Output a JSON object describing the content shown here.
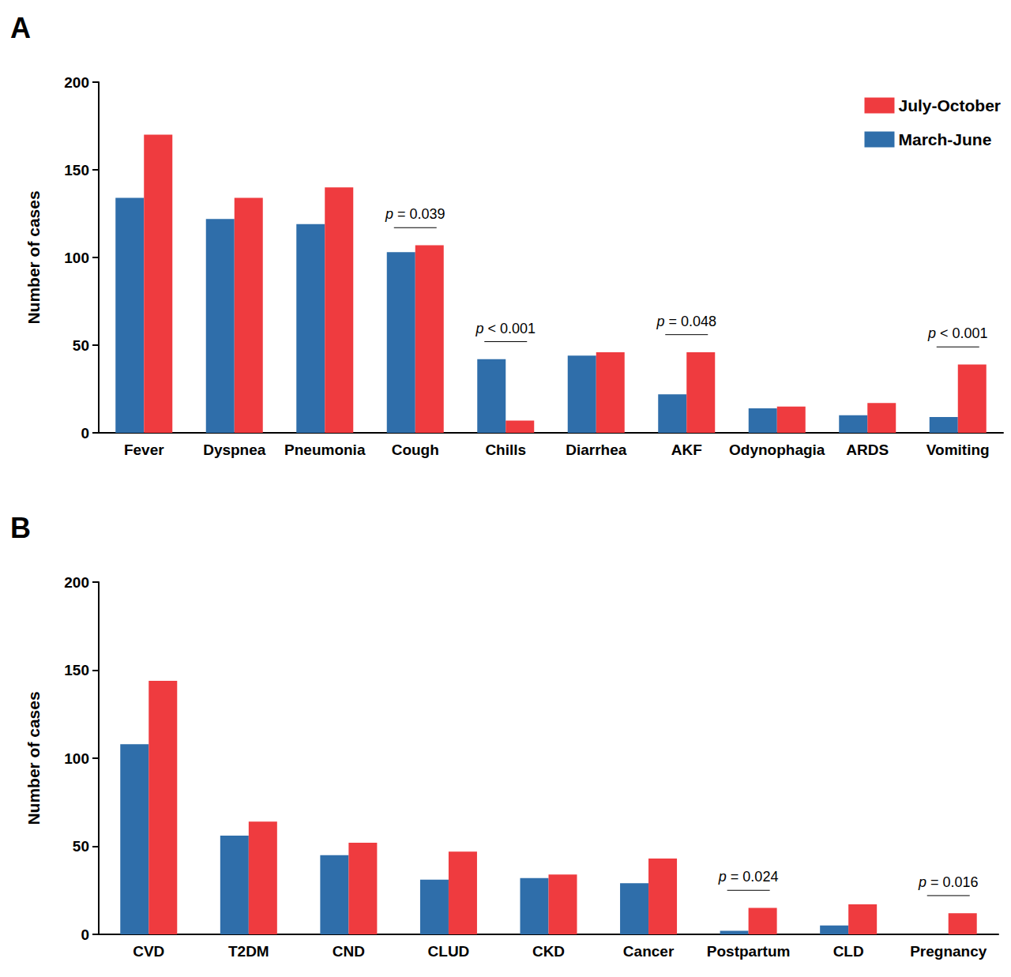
{
  "chart_data": [
    {
      "type": "bar",
      "title": "A",
      "y_label": "Number of cases",
      "categories": [
        "Fever",
        "Dyspnea",
        "Pneumonia",
        "Cough",
        "Chills",
        "Diarrhea",
        "AKF",
        "Odynophagia",
        "ARDS",
        "Vomiting"
      ],
      "series": [
        {
          "name": "March-June",
          "color": "#2f6eaa",
          "values": [
            134,
            122,
            119,
            103,
            42,
            44,
            22,
            14,
            10,
            9
          ]
        },
        {
          "name": "July-October",
          "color": "#ef3b3f",
          "values": [
            170,
            134,
            140,
            107,
            7,
            46,
            46,
            15,
            17,
            39
          ]
        }
      ],
      "ylim": [
        0,
        200
      ],
      "yticks": [
        0,
        50,
        100,
        150,
        200
      ],
      "grid": false,
      "legend": "upper right",
      "annotations": [
        {
          "category": "Cough",
          "text": "p = 0.039"
        },
        {
          "category": "Chills",
          "text": "p < 0.001"
        },
        {
          "category": "AKF",
          "text": "p = 0.048"
        },
        {
          "category": "Vomiting",
          "text": "p < 0.001"
        }
      ]
    },
    {
      "type": "bar",
      "title": "B",
      "y_label": "Number of cases",
      "categories": [
        "CVD",
        "T2DM",
        "CND",
        "CLUD",
        "CKD",
        "Cancer",
        "Postpartum",
        "CLD",
        "Pregnancy"
      ],
      "series": [
        {
          "name": "March-June",
          "color": "#2f6eaa",
          "values": [
            108,
            56,
            45,
            31,
            32,
            29,
            2,
            5,
            0
          ]
        },
        {
          "name": "July-October",
          "color": "#ef3b3f",
          "values": [
            144,
            64,
            52,
            47,
            34,
            43,
            15,
            17,
            12
          ]
        }
      ],
      "ylim": [
        0,
        200
      ],
      "yticks": [
        0,
        50,
        100,
        150,
        200
      ],
      "grid": false,
      "annotations": [
        {
          "category": "Postpartum",
          "text": "p = 0.024"
        },
        {
          "category": "Pregnancy",
          "text": "p = 0.016"
        }
      ]
    }
  ]
}
